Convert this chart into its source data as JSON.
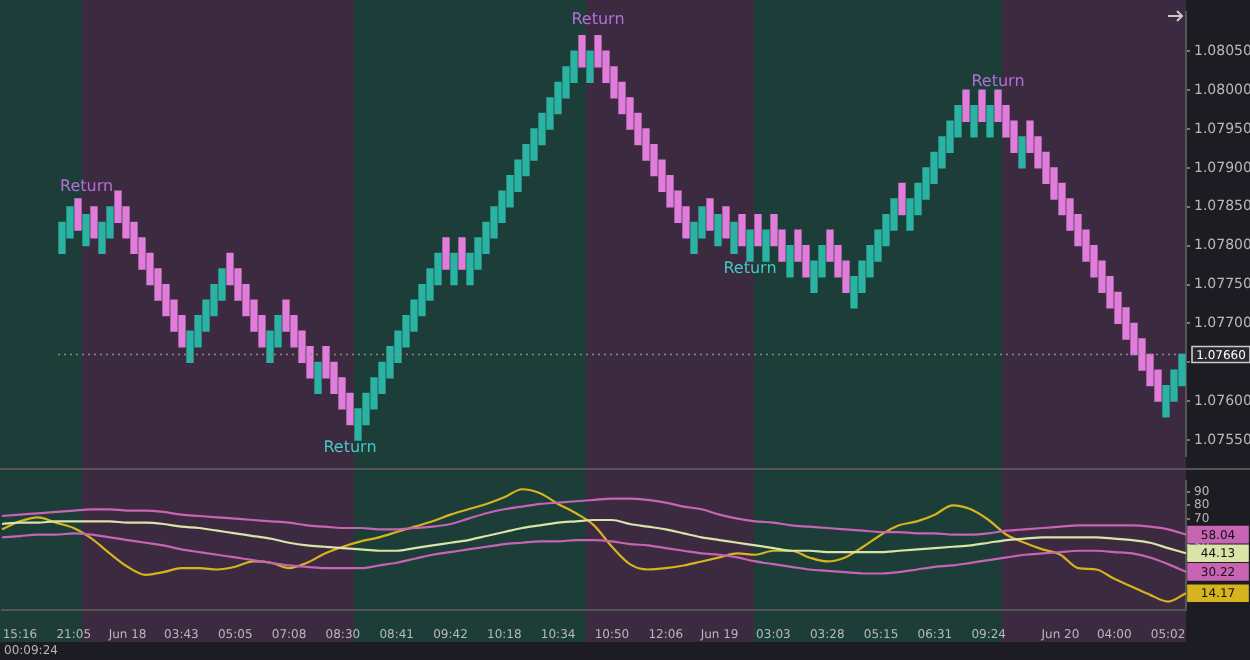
{
  "chart_data": [
    {
      "type": "candlestick",
      "categories": [
        null,
        null,
        null,
        null,
        null,
        null,
        null,
        null,
        null,
        null,
        null,
        null,
        null,
        null,
        null,
        null,
        null,
        null,
        null,
        null,
        null,
        null,
        null,
        null,
        null,
        null,
        null,
        null,
        null,
        null,
        null,
        null,
        null,
        null,
        null,
        null,
        null,
        null,
        null,
        null,
        null,
        null,
        null,
        null,
        null,
        null,
        null,
        null,
        null,
        null,
        null,
        null,
        null,
        null,
        null,
        null,
        null,
        null,
        null,
        null,
        null,
        null,
        null,
        null,
        null,
        null,
        null,
        null,
        null,
        null,
        null,
        null,
        null,
        null,
        null,
        null,
        null,
        null,
        null,
        null,
        null,
        null,
        null,
        null,
        null,
        null,
        null,
        null,
        null,
        null,
        null,
        null,
        null,
        null,
        null,
        null,
        null,
        null,
        null,
        null,
        null,
        null,
        null,
        null,
        null,
        null,
        null,
        null,
        null,
        null,
        null,
        null,
        null,
        null,
        null,
        null,
        null,
        null,
        null,
        null,
        null,
        null,
        null,
        null,
        null,
        null,
        null,
        null,
        null,
        null,
        null,
        null,
        null,
        null,
        null,
        null,
        null,
        null,
        null,
        null,
        null
      ],
      "ohlc": [
        [
          1.0779,
          1.0783,
          1.0779,
          1.0783
        ],
        [
          1.0781,
          1.0785,
          1.0781,
          1.0785
        ],
        [
          1.0786,
          1.0786,
          1.0782,
          1.0782
        ],
        [
          1.078,
          1.0784,
          1.078,
          1.0784
        ],
        [
          1.0785,
          1.0785,
          1.0781,
          1.0781
        ],
        [
          1.0779,
          1.0783,
          1.0779,
          1.0783
        ],
        [
          1.0781,
          1.0785,
          1.0781,
          1.0785
        ],
        [
          1.0787,
          1.0787,
          1.0783,
          1.0783
        ],
        [
          1.0785,
          1.0785,
          1.0781,
          1.0781
        ],
        [
          1.0783,
          1.0783,
          1.0779,
          1.0779
        ],
        [
          1.0781,
          1.0781,
          1.0777,
          1.0777
        ],
        [
          1.0779,
          1.0779,
          1.0775,
          1.0775
        ],
        [
          1.0777,
          1.0777,
          1.0773,
          1.0773
        ],
        [
          1.0775,
          1.0775,
          1.0771,
          1.0771
        ],
        [
          1.0773,
          1.0773,
          1.0769,
          1.0769
        ],
        [
          1.0771,
          1.0771,
          1.0767,
          1.0767
        ],
        [
          1.0765,
          1.0769,
          1.0765,
          1.0769
        ],
        [
          1.0767,
          1.0771,
          1.0767,
          1.0771
        ],
        [
          1.0769,
          1.0773,
          1.0769,
          1.0773
        ],
        [
          1.0771,
          1.0775,
          1.0771,
          1.0775
        ],
        [
          1.0773,
          1.0777,
          1.0773,
          1.0777
        ],
        [
          1.0779,
          1.0779,
          1.0775,
          1.0775
        ],
        [
          1.0777,
          1.0777,
          1.0773,
          1.0773
        ],
        [
          1.0775,
          1.0775,
          1.0771,
          1.0771
        ],
        [
          1.0773,
          1.0773,
          1.0769,
          1.0769
        ],
        [
          1.0771,
          1.0771,
          1.0767,
          1.0767
        ],
        [
          1.0765,
          1.0769,
          1.0765,
          1.0769
        ],
        [
          1.0767,
          1.0771,
          1.0767,
          1.0771
        ],
        [
          1.0773,
          1.0773,
          1.0769,
          1.0769
        ],
        [
          1.0771,
          1.0771,
          1.0767,
          1.0767
        ],
        [
          1.0769,
          1.0769,
          1.0765,
          1.0765
        ],
        [
          1.0767,
          1.0767,
          1.0763,
          1.0763
        ],
        [
          1.0761,
          1.0765,
          1.0761,
          1.0765
        ],
        [
          1.0767,
          1.0767,
          1.0763,
          1.0763
        ],
        [
          1.0765,
          1.0765,
          1.0761,
          1.0761
        ],
        [
          1.0763,
          1.0763,
          1.0759,
          1.0759
        ],
        [
          1.0761,
          1.0761,
          1.0757,
          1.0757
        ],
        [
          1.0755,
          1.0759,
          1.0755,
          1.0759
        ],
        [
          1.0757,
          1.0761,
          1.0757,
          1.0761
        ],
        [
          1.0759,
          1.0763,
          1.0759,
          1.0763
        ],
        [
          1.0761,
          1.0765,
          1.0761,
          1.0765
        ],
        [
          1.0763,
          1.0767,
          1.0763,
          1.0767
        ],
        [
          1.0765,
          1.0769,
          1.0765,
          1.0769
        ],
        [
          1.0767,
          1.0771,
          1.0767,
          1.0771
        ],
        [
          1.0769,
          1.0773,
          1.0769,
          1.0773
        ],
        [
          1.0771,
          1.0775,
          1.0771,
          1.0775
        ],
        [
          1.0773,
          1.0777,
          1.0773,
          1.0777
        ],
        [
          1.0775,
          1.0779,
          1.0775,
          1.0779
        ],
        [
          1.0781,
          1.0781,
          1.0777,
          1.0777
        ],
        [
          1.0775,
          1.0779,
          1.0775,
          1.0779
        ],
        [
          1.0781,
          1.0781,
          1.0777,
          1.0777
        ],
        [
          1.0775,
          1.0779,
          1.0775,
          1.0779
        ],
        [
          1.0777,
          1.0781,
          1.0777,
          1.0781
        ],
        [
          1.0779,
          1.0783,
          1.0779,
          1.0783
        ],
        [
          1.0781,
          1.0785,
          1.0781,
          1.0785
        ],
        [
          1.0783,
          1.0787,
          1.0783,
          1.0787
        ],
        [
          1.0785,
          1.0789,
          1.0785,
          1.0789
        ],
        [
          1.0787,
          1.0791,
          1.0787,
          1.0791
        ],
        [
          1.0789,
          1.0793,
          1.0789,
          1.0793
        ],
        [
          1.0791,
          1.0795,
          1.0791,
          1.0795
        ],
        [
          1.0793,
          1.0797,
          1.0793,
          1.0797
        ],
        [
          1.0795,
          1.0799,
          1.0795,
          1.0799
        ],
        [
          1.0797,
          1.0801,
          1.0797,
          1.0801
        ],
        [
          1.0799,
          1.0803,
          1.0799,
          1.0803
        ],
        [
          1.0801,
          1.0805,
          1.0801,
          1.0805
        ],
        [
          1.0807,
          1.0807,
          1.0803,
          1.0803
        ],
        [
          1.0801,
          1.0805,
          1.0801,
          1.0805
        ],
        [
          1.0807,
          1.0807,
          1.0803,
          1.0803
        ],
        [
          1.0805,
          1.0805,
          1.0801,
          1.0801
        ],
        [
          1.0803,
          1.0803,
          1.0799,
          1.0799
        ],
        [
          1.0801,
          1.0801,
          1.0797,
          1.0797
        ],
        [
          1.0799,
          1.0799,
          1.0795,
          1.0795
        ],
        [
          1.0797,
          1.0797,
          1.0793,
          1.0793
        ],
        [
          1.0795,
          1.0795,
          1.0791,
          1.0791
        ],
        [
          1.0793,
          1.0793,
          1.0789,
          1.0789
        ],
        [
          1.0791,
          1.0791,
          1.0787,
          1.0787
        ],
        [
          1.0789,
          1.0789,
          1.0785,
          1.0785
        ],
        [
          1.0787,
          1.0787,
          1.0783,
          1.0783
        ],
        [
          1.0785,
          1.0785,
          1.0781,
          1.0781
        ],
        [
          1.0779,
          1.0783,
          1.0779,
          1.0783
        ],
        [
          1.0781,
          1.0785,
          1.0781,
          1.0785
        ],
        [
          1.0786,
          1.0786,
          1.0782,
          1.0782
        ],
        [
          1.078,
          1.0784,
          1.078,
          1.0784
        ],
        [
          1.0785,
          1.0785,
          1.0781,
          1.0781
        ],
        [
          1.0779,
          1.0783,
          1.0779,
          1.0783
        ],
        [
          1.0784,
          1.0784,
          1.078,
          1.078
        ],
        [
          1.0778,
          1.0782,
          1.0778,
          1.0782
        ],
        [
          1.0784,
          1.0784,
          1.078,
          1.078
        ],
        [
          1.0778,
          1.0782,
          1.0778,
          1.0782
        ],
        [
          1.0784,
          1.0784,
          1.078,
          1.078
        ],
        [
          1.0782,
          1.0782,
          1.0778,
          1.0778
        ],
        [
          1.0776,
          1.078,
          1.0776,
          1.078
        ],
        [
          1.0782,
          1.0782,
          1.0778,
          1.0778
        ],
        [
          1.078,
          1.078,
          1.0776,
          1.0776
        ],
        [
          1.0774,
          1.0778,
          1.0774,
          1.0778
        ],
        [
          1.0776,
          1.078,
          1.0776,
          1.078
        ],
        [
          1.0782,
          1.0782,
          1.0778,
          1.0778
        ],
        [
          1.078,
          1.078,
          1.0776,
          1.0776
        ],
        [
          1.0778,
          1.0778,
          1.0774,
          1.0774
        ],
        [
          1.0772,
          1.0776,
          1.0772,
          1.0776
        ],
        [
          1.0774,
          1.0778,
          1.0774,
          1.0778
        ],
        [
          1.0776,
          1.078,
          1.0776,
          1.078
        ],
        [
          1.0778,
          1.0782,
          1.0778,
          1.0782
        ],
        [
          1.078,
          1.0784,
          1.078,
          1.0784
        ],
        [
          1.0782,
          1.0786,
          1.0782,
          1.0786
        ],
        [
          1.0788,
          1.0788,
          1.0784,
          1.0784
        ],
        [
          1.0782,
          1.0786,
          1.0782,
          1.0786
        ],
        [
          1.0784,
          1.0788,
          1.0784,
          1.0788
        ],
        [
          1.0786,
          1.079,
          1.0786,
          1.079
        ],
        [
          1.0788,
          1.0792,
          1.0788,
          1.0792
        ],
        [
          1.079,
          1.0794,
          1.079,
          1.0794
        ],
        [
          1.0792,
          1.0796,
          1.0792,
          1.0796
        ],
        [
          1.0794,
          1.0798,
          1.0794,
          1.0798
        ],
        [
          1.08,
          1.08,
          1.0796,
          1.0796
        ],
        [
          1.0794,
          1.0798,
          1.0794,
          1.0798
        ],
        [
          1.08,
          1.08,
          1.0796,
          1.0796
        ],
        [
          1.0794,
          1.0798,
          1.0794,
          1.0798
        ],
        [
          1.08,
          1.08,
          1.0796,
          1.0796
        ],
        [
          1.0798,
          1.0798,
          1.0794,
          1.0794
        ],
        [
          1.0796,
          1.0796,
          1.0792,
          1.0792
        ],
        [
          1.079,
          1.0794,
          1.079,
          1.0794
        ],
        [
          1.0796,
          1.0796,
          1.0792,
          1.0792
        ],
        [
          1.0794,
          1.0794,
          1.079,
          1.079
        ],
        [
          1.0792,
          1.0792,
          1.0788,
          1.0788
        ],
        [
          1.079,
          1.079,
          1.0786,
          1.0786
        ],
        [
          1.0788,
          1.0788,
          1.0784,
          1.0784
        ],
        [
          1.0786,
          1.0786,
          1.0782,
          1.0782
        ],
        [
          1.0784,
          1.0784,
          1.078,
          1.078
        ],
        [
          1.0782,
          1.0782,
          1.0778,
          1.0778
        ],
        [
          1.078,
          1.078,
          1.0776,
          1.0776
        ],
        [
          1.0778,
          1.0778,
          1.0774,
          1.0774
        ],
        [
          1.0776,
          1.0776,
          1.0772,
          1.0772
        ],
        [
          1.0774,
          1.0774,
          1.077,
          1.077
        ],
        [
          1.0772,
          1.0772,
          1.0768,
          1.0768
        ],
        [
          1.077,
          1.077,
          1.0766,
          1.0766
        ],
        [
          1.0768,
          1.0768,
          1.0764,
          1.0764
        ],
        [
          1.0766,
          1.0766,
          1.0762,
          1.0762
        ],
        [
          1.0764,
          1.0764,
          1.076,
          1.076
        ],
        [
          1.0758,
          1.0762,
          1.0758,
          1.0762
        ],
        [
          1.076,
          1.0764,
          1.076,
          1.0764
        ],
        [
          1.0762,
          1.0766,
          1.0762,
          1.0766
        ]
      ],
      "colors": [
        "#2ab3a3",
        "#2ab3a3",
        "#e07cd9",
        "#2ab3a3",
        "#e07cd9",
        "#2ab3a3",
        "#2ab3a3",
        "#e07cd9",
        "#e07cd9",
        "#e07cd9",
        "#e07cd9",
        "#e07cd9",
        "#e07cd9",
        "#e07cd9",
        "#e07cd9",
        "#e07cd9",
        "#2ab3a3",
        "#2ab3a3",
        "#2ab3a3",
        "#2ab3a3",
        "#2ab3a3",
        "#e07cd9",
        "#e07cd9",
        "#e07cd9",
        "#e07cd9",
        "#e07cd9",
        "#2ab3a3",
        "#2ab3a3",
        "#e07cd9",
        "#e07cd9",
        "#e07cd9",
        "#e07cd9",
        "#2ab3a3",
        "#e07cd9",
        "#e07cd9",
        "#e07cd9",
        "#e07cd9",
        "#2ab3a3",
        "#2ab3a3",
        "#2ab3a3",
        "#2ab3a3",
        "#2ab3a3",
        "#2ab3a3",
        "#2ab3a3",
        "#2ab3a3",
        "#2ab3a3",
        "#2ab3a3",
        "#2ab3a3",
        "#e07cd9",
        "#2ab3a3",
        "#e07cd9",
        "#2ab3a3",
        "#2ab3a3",
        "#2ab3a3",
        "#2ab3a3",
        "#2ab3a3",
        "#2ab3a3",
        "#2ab3a3",
        "#2ab3a3",
        "#2ab3a3",
        "#2ab3a3",
        "#2ab3a3",
        "#2ab3a3",
        "#2ab3a3",
        "#2ab3a3",
        "#e07cd9",
        "#2ab3a3",
        "#e07cd9",
        "#e07cd9",
        "#e07cd9",
        "#e07cd9",
        "#e07cd9",
        "#e07cd9",
        "#e07cd9",
        "#e07cd9",
        "#e07cd9",
        "#e07cd9",
        "#e07cd9",
        "#e07cd9",
        "#2ab3a3",
        "#2ab3a3",
        "#e07cd9",
        "#2ab3a3",
        "#e07cd9",
        "#2ab3a3",
        "#e07cd9",
        "#2ab3a3",
        "#e07cd9",
        "#2ab3a3",
        "#e07cd9",
        "#e07cd9",
        "#2ab3a3",
        "#e07cd9",
        "#e07cd9",
        "#2ab3a3",
        "#2ab3a3",
        "#e07cd9",
        "#e07cd9",
        "#e07cd9",
        "#2ab3a3",
        "#2ab3a3",
        "#2ab3a3",
        "#2ab3a3",
        "#2ab3a3",
        "#2ab3a3",
        "#e07cd9",
        "#2ab3a3",
        "#2ab3a3",
        "#2ab3a3",
        "#2ab3a3",
        "#2ab3a3",
        "#2ab3a3",
        "#2ab3a3",
        "#e07cd9",
        "#2ab3a3",
        "#e07cd9",
        "#2ab3a3",
        "#e07cd9",
        "#e07cd9",
        "#e07cd9",
        "#2ab3a3",
        "#e07cd9",
        "#e07cd9",
        "#e07cd9",
        "#e07cd9",
        "#e07cd9",
        "#e07cd9",
        "#e07cd9",
        "#e07cd9",
        "#e07cd9",
        "#e07cd9",
        "#e07cd9",
        "#e07cd9",
        "#e07cd9",
        "#e07cd9",
        "#e07cd9",
        "#e07cd9",
        "#e07cd9",
        "#2ab3a3",
        "#2ab3a3",
        "#2ab3a3"
      ],
      "ylim": [
        1.0753,
        1.081
      ],
      "yticks": [
        {
          "value": 1.0805,
          "label": "1.08050"
        },
        {
          "value": 1.08,
          "label": "1.08000"
        },
        {
          "value": 1.0795,
          "label": "1.07950"
        },
        {
          "value": 1.079,
          "label": "1.07900"
        },
        {
          "value": 1.0785,
          "label": "1.07850"
        },
        {
          "value": 1.078,
          "label": "1.07800"
        },
        {
          "value": 1.0775,
          "label": "1.07750"
        },
        {
          "value": 1.077,
          "label": "1.07700"
        },
        {
          "value": 1.0765,
          "label": null
        },
        {
          "value": 1.076,
          "label": "1.07600"
        },
        {
          "value": 1.0755,
          "label": "1.07550"
        }
      ],
      "tick_labels": "y",
      "ref_lines": [
        {
          "axis": "y",
          "value": 1.0766,
          "label": "1.07660",
          "color": "#8a8a8a",
          "line_style": "dotted"
        }
      ],
      "annotations": [
        {
          "text": "Return",
          "y": 1.07865
        },
        {
          "text": "Return",
          "y": 1.0755
        },
        {
          "text": "Return",
          "y": 1.0808
        },
        {
          "text": "Return",
          "y": 1.0778
        },
        {
          "text": "Return",
          "y": 1.08
        }
      ]
    },
    {
      "type": "line",
      "categories": [
        null,
        "15:16",
        null,
        null,
        "21:05",
        null,
        null,
        "Jun 18",
        null,
        null,
        "03:43",
        null,
        null,
        "05:05",
        null,
        null,
        "07:08",
        null,
        null,
        "08:30",
        null,
        null,
        "08:41",
        null,
        null,
        "09:42",
        null,
        null,
        "10:18",
        null,
        null,
        "10:34",
        null,
        null,
        "10:50",
        null,
        null,
        "12:06",
        null,
        null,
        "Jun 19",
        null,
        null,
        "03:03",
        null,
        null,
        "03:28",
        null,
        null,
        "05:15",
        null,
        null,
        "06:31",
        null,
        null,
        "09:24",
        null,
        null,
        null,
        "Jun 20",
        null,
        null,
        "04:00",
        null,
        null,
        "05:02",
        null
      ],
      "series": [
        {
          "color": "#c864b4",
          "values": [
            72,
            73,
            74,
            75,
            76,
            77,
            77,
            76,
            76,
            75,
            73,
            72,
            71,
            70,
            69,
            68,
            67,
            65,
            64,
            63,
            63,
            62,
            62,
            63,
            64,
            66,
            70,
            74,
            77,
            79,
            81,
            82,
            83,
            84,
            85,
            85,
            84,
            82,
            79,
            77,
            73,
            70,
            68,
            67,
            65,
            64,
            63,
            62,
            61,
            60,
            60,
            59,
            59,
            58,
            58,
            59,
            61,
            62,
            63,
            64,
            65,
            65,
            65,
            65,
            64,
            62,
            58.04
          ],
          "value_labels": [
            null,
            null,
            null,
            null,
            null,
            null,
            null,
            null,
            null,
            null,
            null,
            null,
            null,
            null,
            null,
            null,
            null,
            null,
            null,
            null,
            null,
            null,
            null,
            null,
            null,
            null,
            null,
            null,
            null,
            null,
            null,
            null,
            null,
            null,
            null,
            null,
            null,
            null,
            null,
            null,
            null,
            null,
            null,
            null,
            null,
            null,
            null,
            null,
            null,
            null,
            null,
            null,
            null,
            null,
            null,
            null,
            null,
            null,
            null,
            null,
            null,
            null,
            null,
            null,
            null,
            null,
            "58.04"
          ]
        },
        {
          "color": "#d8e4a8",
          "values": [
            66,
            67,
            67,
            68,
            68,
            68,
            68,
            67,
            67,
            66,
            64,
            63,
            61,
            59,
            57,
            55,
            52,
            50,
            49,
            48,
            47,
            46,
            46,
            48,
            50,
            52,
            54,
            57,
            60,
            63,
            65,
            67,
            68,
            69,
            69,
            66,
            64,
            62,
            59,
            56,
            54,
            52,
            50,
            48,
            46,
            46,
            45,
            45,
            45,
            45,
            46,
            47,
            48,
            49,
            50,
            52,
            54,
            55,
            56,
            56,
            56,
            56,
            55,
            54,
            52,
            48,
            44.13
          ],
          "value_labels": [
            null,
            null,
            null,
            null,
            null,
            null,
            null,
            null,
            null,
            null,
            null,
            null,
            null,
            null,
            null,
            null,
            null,
            null,
            null,
            null,
            null,
            null,
            null,
            null,
            null,
            null,
            null,
            null,
            null,
            null,
            null,
            null,
            null,
            null,
            null,
            null,
            null,
            null,
            null,
            null,
            null,
            null,
            null,
            null,
            null,
            null,
            null,
            null,
            null,
            null,
            null,
            null,
            null,
            null,
            null,
            null,
            null,
            null,
            null,
            null,
            null,
            null,
            null,
            null,
            null,
            null,
            "44.13"
          ]
        },
        {
          "color": "#c864b4",
          "values": [
            56,
            57,
            58,
            58,
            59,
            58,
            56,
            54,
            52,
            50,
            47,
            45,
            43,
            41,
            39,
            37,
            35,
            34,
            33,
            33,
            33,
            35,
            37,
            40,
            43,
            45,
            47,
            49,
            51,
            52,
            53,
            53,
            54,
            54,
            53,
            51,
            50,
            48,
            46,
            44,
            43,
            41,
            38,
            36,
            34,
            32,
            31,
            30,
            29,
            29,
            30,
            32,
            34,
            35,
            37,
            39,
            41,
            43,
            44,
            45,
            46,
            46,
            45,
            44,
            41,
            36,
            30.22
          ],
          "value_labels": [
            null,
            null,
            null,
            null,
            null,
            null,
            null,
            null,
            null,
            null,
            null,
            null,
            null,
            null,
            null,
            null,
            null,
            null,
            null,
            null,
            null,
            null,
            null,
            null,
            null,
            null,
            null,
            null,
            null,
            null,
            null,
            null,
            null,
            null,
            null,
            null,
            null,
            null,
            null,
            null,
            null,
            null,
            null,
            null,
            null,
            null,
            null,
            null,
            null,
            null,
            null,
            null,
            null,
            null,
            null,
            null,
            null,
            null,
            null,
            null,
            null,
            null,
            null,
            null,
            null,
            null,
            "30.22"
          ]
        },
        {
          "color": "#d6b41e",
          "values": [
            62,
            68,
            71,
            67,
            63,
            55,
            44,
            34,
            28,
            30,
            33,
            33,
            32,
            34,
            38,
            37,
            33,
            37,
            44,
            49,
            53,
            56,
            60,
            64,
            68,
            73,
            77,
            81,
            86,
            92,
            89,
            81,
            74,
            65,
            49,
            36,
            32,
            33,
            35,
            38,
            41,
            44,
            43,
            46,
            46,
            41,
            38,
            41,
            49,
            58,
            65,
            68,
            73,
            80,
            77,
            69,
            58,
            52,
            47,
            43,
            33,
            32,
            25,
            19,
            13,
            8,
            14.17
          ],
          "value_labels": [
            null,
            null,
            null,
            null,
            null,
            null,
            null,
            null,
            null,
            null,
            null,
            null,
            null,
            null,
            null,
            null,
            null,
            null,
            null,
            null,
            null,
            null,
            null,
            null,
            null,
            null,
            null,
            null,
            null,
            null,
            null,
            null,
            null,
            null,
            null,
            null,
            null,
            null,
            null,
            null,
            null,
            null,
            null,
            null,
            null,
            null,
            null,
            null,
            null,
            null,
            null,
            null,
            null,
            null,
            null,
            null,
            null,
            null,
            null,
            null,
            null,
            null,
            null,
            null,
            null,
            null,
            "14.17"
          ]
        }
      ],
      "ylim": [
        2,
        98
      ],
      "yticks": [
        90,
        80,
        70,
        {
          "value": 60,
          "label": null
        },
        50,
        {
          "value": 40,
          "label": null
        },
        {
          "value": 30,
          "label": null
        },
        {
          "value": 20,
          "label": null
        },
        {
          "value": 10,
          "label": null
        }
      ],
      "annotations": [
        "00:09:24"
      ]
    }
  ]
}
